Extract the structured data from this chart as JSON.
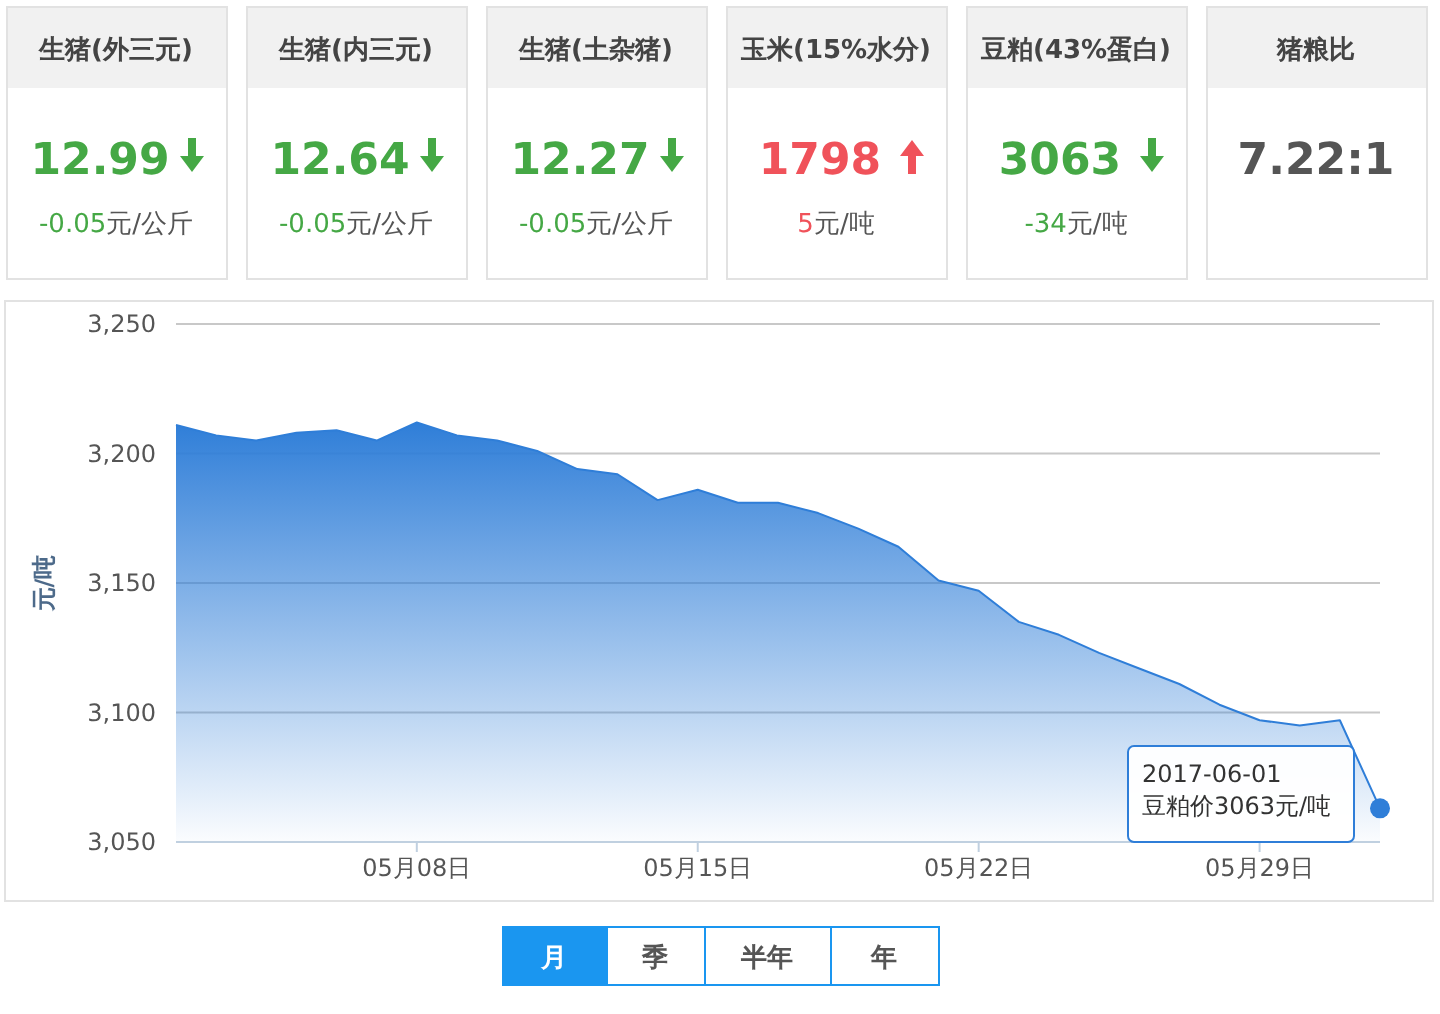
{
  "chart_data": [
    {
      "type": "other",
      "value_labels": [
        "12.99",
        "12.64",
        "12.27",
        "1798",
        "3063",
        "7.22:1"
      ],
      "annotations": [
        "生猪(外三元)",
        "生猪(内三元)",
        "生猪(土杂猪)",
        "玉米(15%水分)",
        "豆粕(43%蛋白)",
        "猪粮比",
        "-0.05元/公斤",
        "-0.05元/公斤",
        "-0.05元/公斤",
        "5元/吨",
        "-34元/吨"
      ],
      "colors": [
        "#45a845",
        "#45a845",
        "#45a845",
        "#f0525a",
        "#45a845",
        "#555555"
      ]
    },
    {
      "type": "area",
      "ylabel": "元/吨",
      "x": [
        "2017-05-02",
        "2017-05-03",
        "2017-05-04",
        "2017-05-05",
        "2017-05-06",
        "2017-05-07",
        "2017-05-08",
        "2017-05-09",
        "2017-05-10",
        "2017-05-11",
        "2017-05-12",
        "2017-05-13",
        "2017-05-14",
        "2017-05-15",
        "2017-05-16",
        "2017-05-17",
        "2017-05-18",
        "2017-05-19",
        "2017-05-20",
        "2017-05-21",
        "2017-05-22",
        "2017-05-23",
        "2017-05-24",
        "2017-05-25",
        "2017-05-26",
        "2017-05-27",
        "2017-05-28",
        "2017-05-29",
        "2017-05-30",
        "2017-05-31",
        "2017-06-01"
      ],
      "series": [
        {
          "color": "#2f7ed8",
          "values": [
            3211,
            3207,
            3205,
            3208,
            3209,
            3205,
            3212,
            3207,
            3205,
            3201,
            3194,
            3192,
            3182,
            3186,
            3181,
            3181,
            3177,
            3171,
            3164,
            3151,
            3147,
            3135,
            3130,
            3123,
            3117,
            3111,
            3103,
            3097,
            3095,
            3097,
            3063
          ]
        }
      ],
      "xlim": [
        "2017-05-02",
        "2017-06-01"
      ],
      "xticks": [
        {
          "value": "2017-05-08",
          "label": "05月08日"
        },
        {
          "value": "2017-05-15",
          "label": "05月15日"
        },
        {
          "value": "2017-05-22",
          "label": "05月22日"
        },
        {
          "value": "2017-05-29",
          "label": "05月29日"
        }
      ],
      "ylim": [
        3050,
        3250
      ],
      "yticks": [
        {
          "value": 3050,
          "label": "3,050"
        },
        {
          "value": 3100,
          "label": "3,100"
        },
        {
          "value": 3150,
          "label": "3,150"
        },
        {
          "value": 3200,
          "label": "3,200"
        },
        {
          "value": 3250,
          "label": "3,250"
        }
      ],
      "grid": "y",
      "marker": "none",
      "annotations": [
        {
          "text": "2017-06-01\n豆粕价3063元/吨",
          "x": "2017-06-01",
          "y": 3063
        },
        "月",
        "季",
        "半年",
        "年"
      ]
    }
  ]
}
